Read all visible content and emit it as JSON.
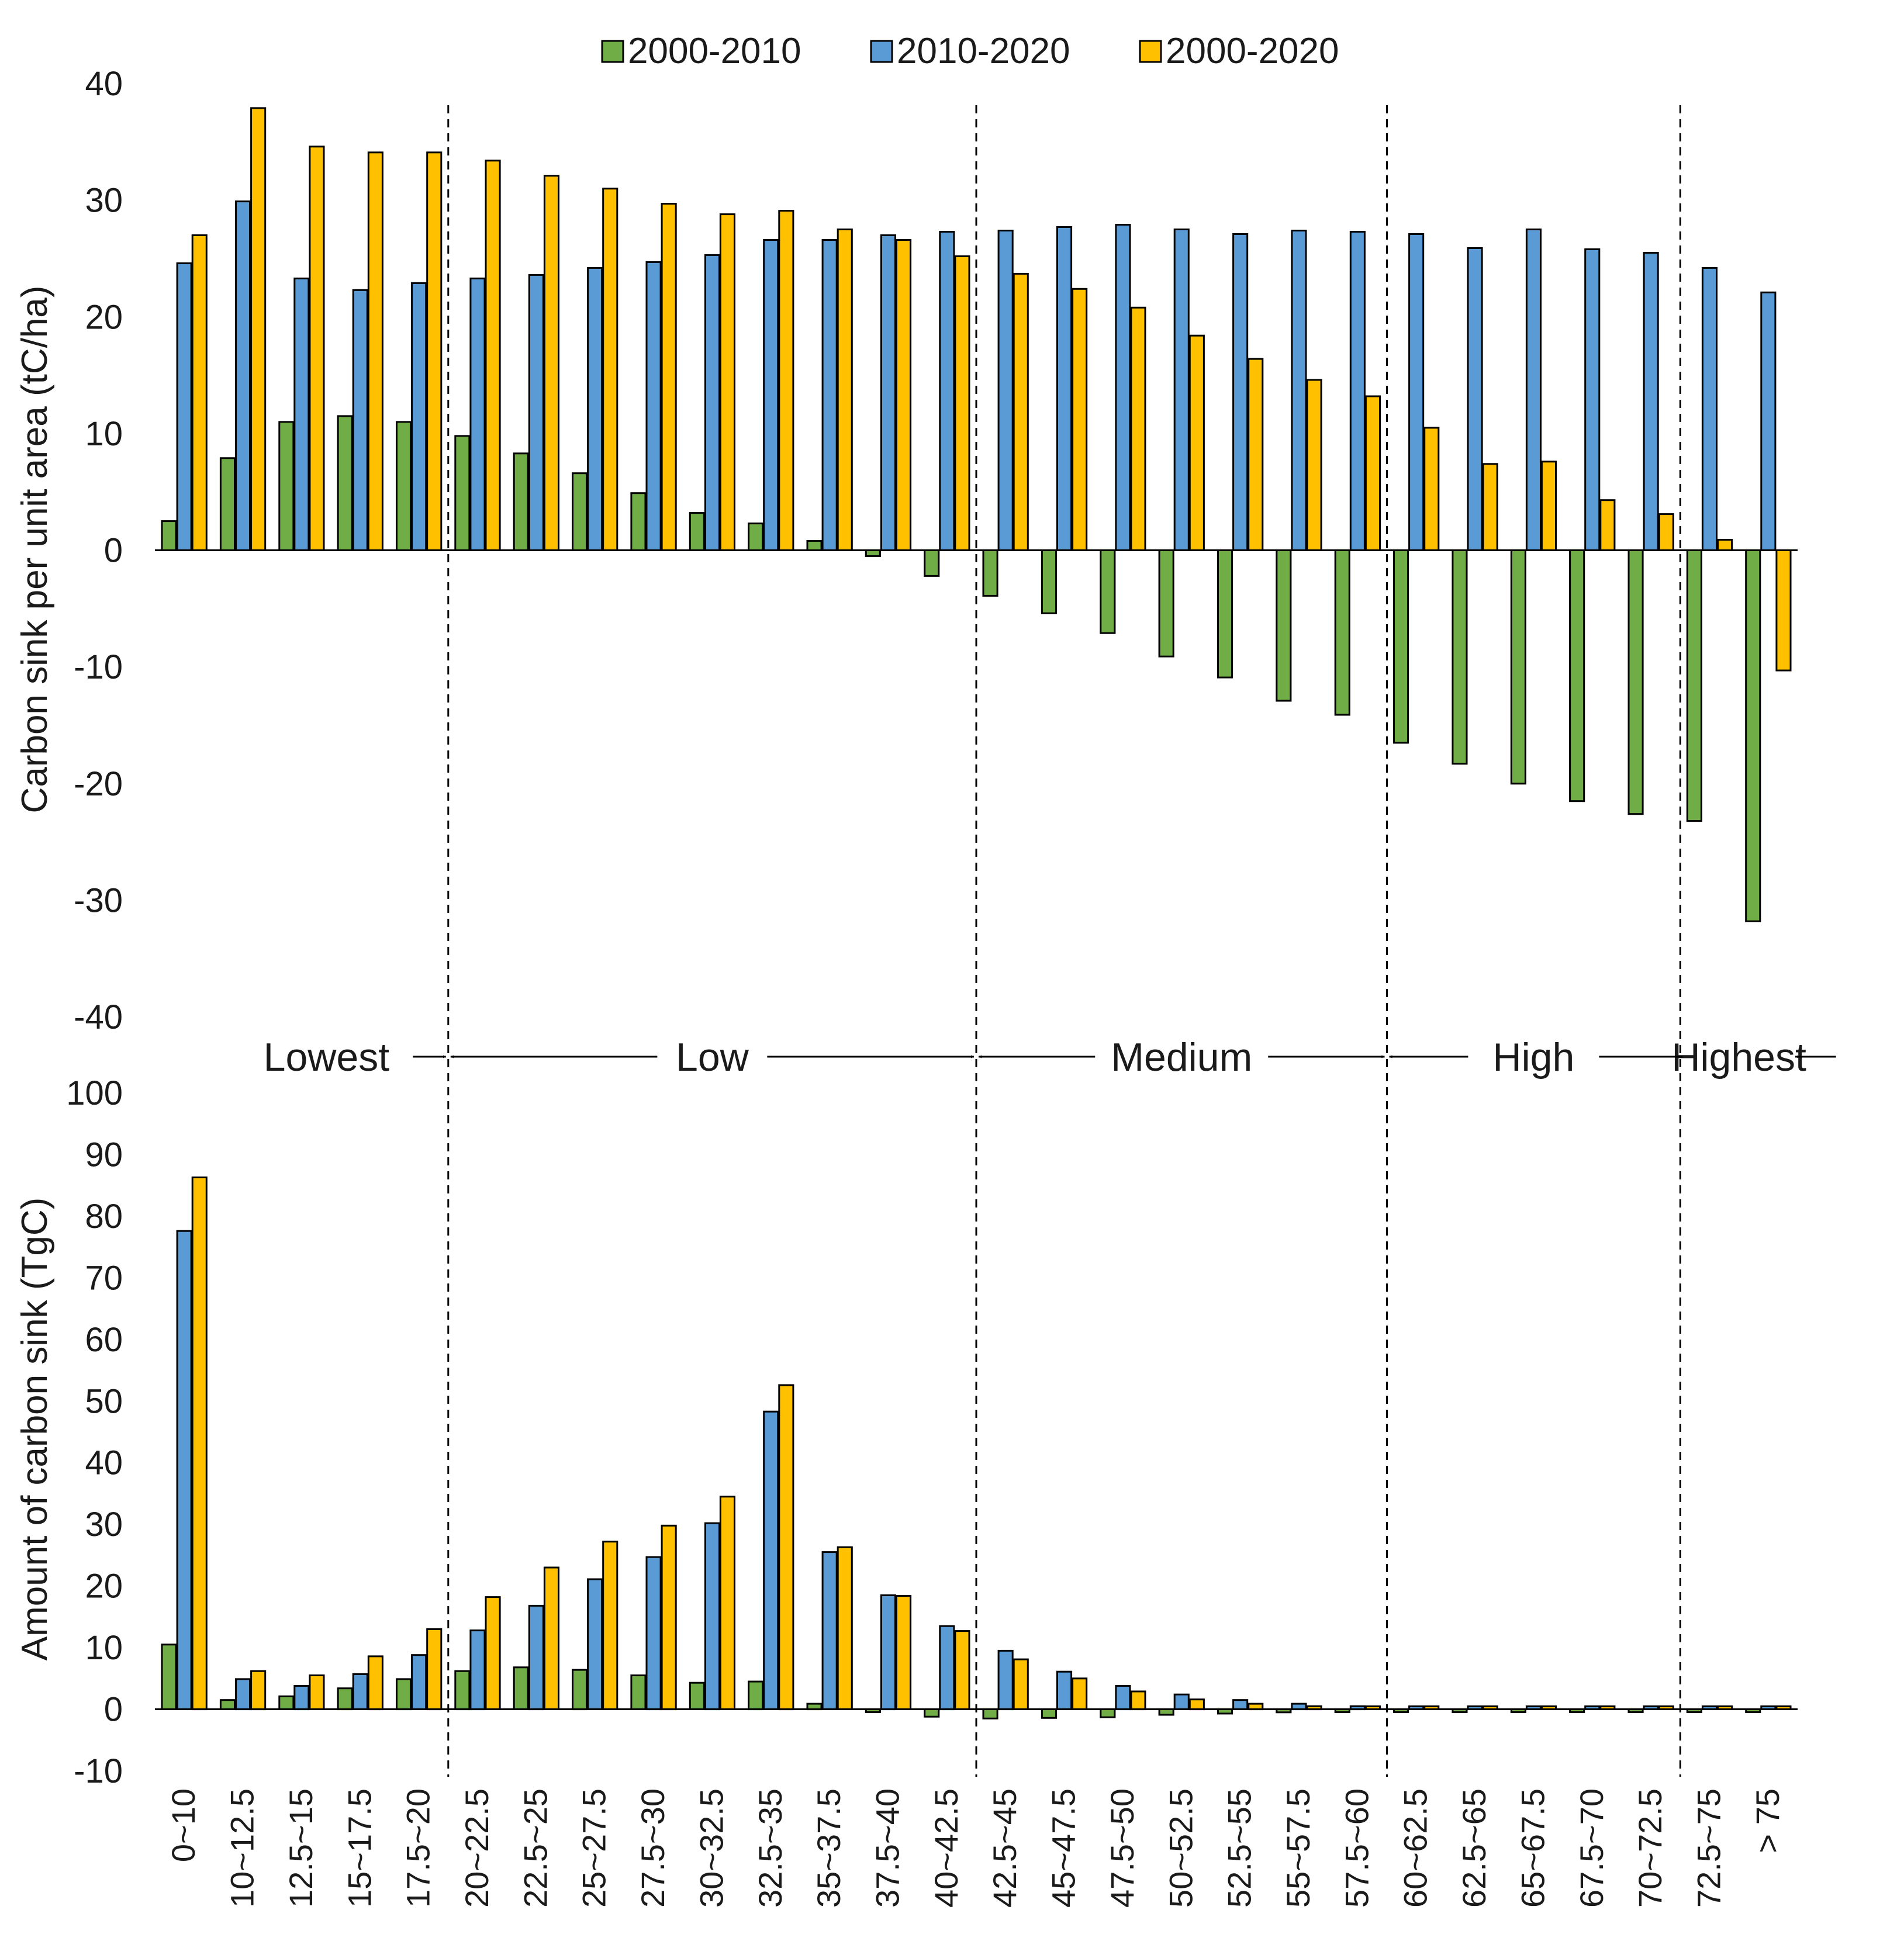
{
  "colors": {
    "s1": "#70AD47",
    "s2": "#5B9BD5",
    "s3": "#FFC000",
    "outline": "#000000"
  },
  "categories": [
    "0~10",
    "10~12.5",
    "12.5~15",
    "15~17.5",
    "17.5~20",
    "20~22.5",
    "22.5~25",
    "25~27.5",
    "27.5~30",
    "30~32.5",
    "32.5~35",
    "35~37.5",
    "37.5~40",
    "40~42.5",
    "42.5~45",
    "45~47.5",
    "47.5~50",
    "50~52.5",
    "52.5~55",
    "55~57.5",
    "57.5~60",
    "60~62.5",
    "62.5~65",
    "65~67.5",
    "67.5~70",
    "70~72.5",
    "72.5~75",
    "> 75"
  ],
  "legend": [
    "2000-2010",
    "2010-2020",
    "2000-2020"
  ],
  "zones": [
    {
      "label": "Lowest",
      "start": 0,
      "end": 5
    },
    {
      "label": "Low",
      "start": 5,
      "end": 14
    },
    {
      "label": "Medium",
      "start": 14,
      "end": 21
    },
    {
      "label": "High",
      "start": 21,
      "end": 26
    },
    {
      "label": "Highest",
      "start": 26,
      "end": 28
    }
  ],
  "chart_data": [
    {
      "type": "bar",
      "title": "",
      "ylabel": "Carbon sink per unit area (tC/ha)",
      "ylim": [
        -40,
        40
      ],
      "yticks": [
        -40,
        -30,
        -20,
        -10,
        0,
        10,
        20,
        30,
        40
      ],
      "series": [
        {
          "name": "2000-2010",
          "values": [
            2.5,
            7.9,
            11.0,
            11.5,
            11.0,
            9.8,
            8.3,
            6.6,
            4.9,
            3.2,
            2.3,
            0.8,
            -0.5,
            -2.2,
            -3.9,
            -5.4,
            -7.1,
            -9.1,
            -10.9,
            -12.9,
            -14.1,
            -16.5,
            -18.3,
            -20.0,
            -21.5,
            -22.6,
            -23.2,
            -31.8
          ]
        },
        {
          "name": "2010-2020",
          "values": [
            24.6,
            29.9,
            23.3,
            22.3,
            22.9,
            23.3,
            23.6,
            24.2,
            24.7,
            25.3,
            26.6,
            26.6,
            27.0,
            27.3,
            27.4,
            27.7,
            27.9,
            27.5,
            27.1,
            27.4,
            27.3,
            27.1,
            25.9,
            27.5,
            25.8,
            25.5,
            24.2,
            22.1
          ]
        },
        {
          "name": "2000-2020",
          "values": [
            27.0,
            37.9,
            34.6,
            34.1,
            34.1,
            33.4,
            32.1,
            31.0,
            29.7,
            28.8,
            29.1,
            27.5,
            26.6,
            25.2,
            23.7,
            22.4,
            20.8,
            18.4,
            16.4,
            14.6,
            13.2,
            10.5,
            7.4,
            7.6,
            4.3,
            3.1,
            0.9,
            -10.3
          ]
        }
      ]
    },
    {
      "type": "bar",
      "title": "",
      "ylabel": "Amount of carbon sink (TgC)",
      "ylim": [
        -10,
        100
      ],
      "yticks": [
        -10,
        0,
        10,
        20,
        30,
        40,
        50,
        60,
        70,
        80,
        90,
        100
      ],
      "series": [
        {
          "name": "2000-2010",
          "values": [
            10.5,
            1.5,
            2.1,
            3.4,
            4.9,
            6.2,
            6.8,
            6.4,
            5.5,
            4.3,
            4.5,
            0.9,
            -0.3,
            -1.2,
            -1.5,
            -1.4,
            -1.3,
            -0.9,
            -0.7,
            -0.5,
            -0.3,
            -0.2,
            -0.2,
            -0.2,
            -0.2,
            -0.2,
            -0.2,
            -0.2
          ]
        },
        {
          "name": "2010-2020",
          "values": [
            77.6,
            4.9,
            3.8,
            5.7,
            8.8,
            12.8,
            16.8,
            21.1,
            24.7,
            30.2,
            48.3,
            25.5,
            18.5,
            13.5,
            9.5,
            6.1,
            3.8,
            2.4,
            1.5,
            0.9,
            0.5,
            0.4,
            0.3,
            0.3,
            0.3,
            0.3,
            0.3,
            0.2
          ]
        },
        {
          "name": "2000-2020",
          "values": [
            86.3,
            6.2,
            5.5,
            8.6,
            13.0,
            18.2,
            23.0,
            27.2,
            29.8,
            34.5,
            52.6,
            26.3,
            18.4,
            12.7,
            8.1,
            5.0,
            2.9,
            1.6,
            0.9,
            0.5,
            0.3,
            0.2,
            0.2,
            0.2,
            0.2,
            0.1,
            0.1,
            0.1
          ]
        }
      ]
    }
  ]
}
